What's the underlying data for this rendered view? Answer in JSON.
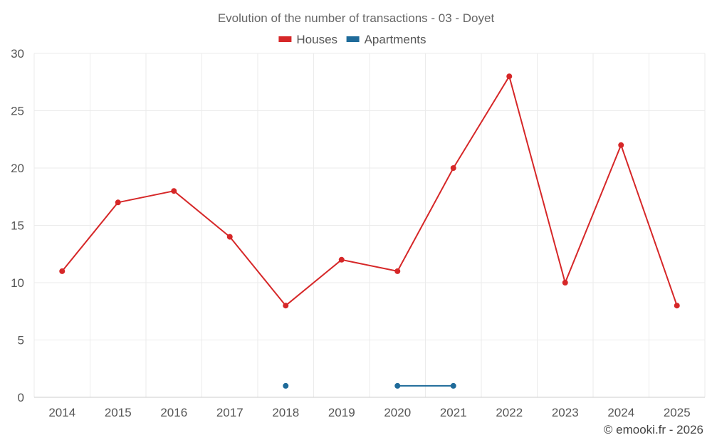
{
  "chart_data": {
    "type": "line",
    "title": "Evolution of the number of transactions - 03 - Doyet",
    "categories": [
      "2014",
      "2015",
      "2016",
      "2017",
      "2018",
      "2019",
      "2020",
      "2021",
      "2022",
      "2023",
      "2024",
      "2025"
    ],
    "ylim": [
      0,
      30
    ],
    "yticks": [
      0,
      5,
      10,
      15,
      20,
      25,
      30
    ],
    "grid": true,
    "legend_position": "top-center",
    "series": [
      {
        "name": "Houses",
        "color": "#d62728",
        "values": [
          11,
          17,
          18,
          14,
          8,
          12,
          11,
          20,
          28,
          10,
          22,
          8
        ]
      },
      {
        "name": "Apartments",
        "color": "#1f6b9a",
        "values": [
          null,
          null,
          null,
          null,
          1,
          null,
          1,
          1,
          null,
          null,
          null,
          null
        ]
      }
    ]
  },
  "credit": "© emooki.fr - 2026"
}
